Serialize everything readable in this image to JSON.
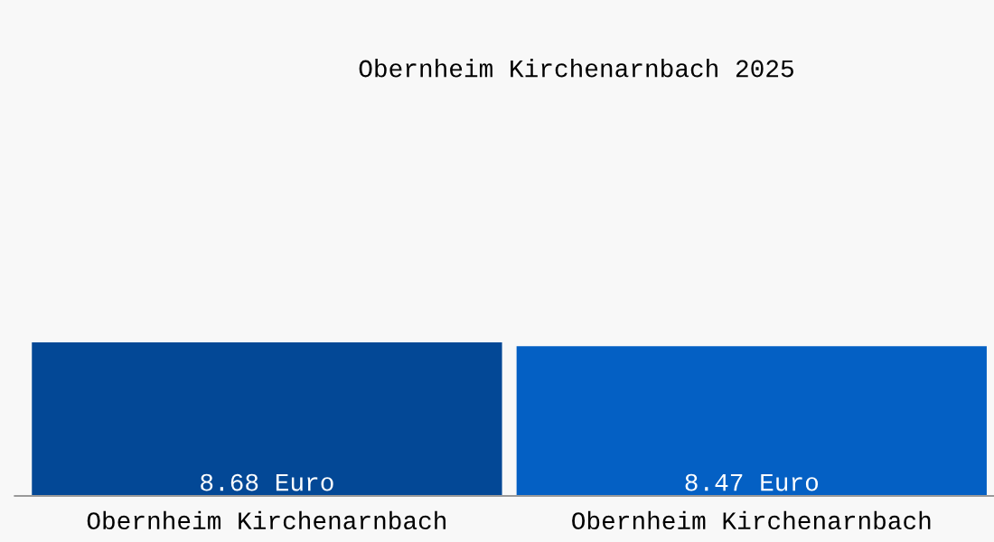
{
  "chart_data": {
    "type": "bar",
    "title": "Obernheim Kirchenarnbach 2025",
    "categories": [
      "Obernheim Kirchenarnbach",
      "Obernheim Kirchenarnbach"
    ],
    "values": [
      8.68,
      8.47
    ],
    "colors": [
      "#034896",
      "#0460c4"
    ],
    "value_labels": [
      "8.68 Euro",
      "8.47 Euro"
    ],
    "grid": false,
    "legend": false
  }
}
